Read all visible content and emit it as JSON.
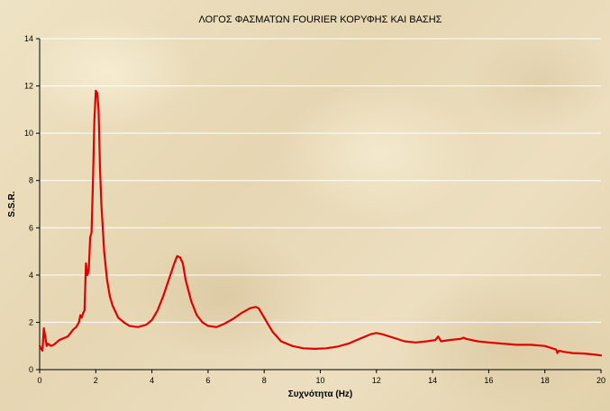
{
  "chart_data": {
    "type": "line",
    "title": "ΛΟΓΟΣ ΦΑΣΜΑΤΩΝ FOURIER ΚΟΡΥΦΗΣ ΚΑΙ ΒΑΣΗΣ",
    "xlabel": "Συχνότητα (Hz)",
    "ylabel": "S.S.R.",
    "xlim": [
      0,
      20
    ],
    "ylim": [
      0,
      14
    ],
    "x_ticks": [
      0,
      2,
      4,
      6,
      8,
      10,
      12,
      14,
      16,
      18,
      20
    ],
    "y_ticks": [
      0,
      2,
      4,
      6,
      8,
      10,
      12,
      14
    ],
    "grid": "horizontal",
    "legend": "none",
    "line_color": "#e00000",
    "series": [
      {
        "x": [
          0.0,
          0.1,
          0.15,
          0.2,
          0.25,
          0.3,
          0.4,
          0.5,
          0.6,
          0.7,
          0.8,
          0.9,
          1.0,
          1.1,
          1.2,
          1.3,
          1.4,
          1.45,
          1.5,
          1.55,
          1.6,
          1.65,
          1.7,
          1.75,
          1.8,
          1.85,
          1.9,
          1.95,
          2.0,
          2.05,
          2.1,
          2.15,
          2.2,
          2.3,
          2.4,
          2.5,
          2.6,
          2.8,
          3.0,
          3.2,
          3.5,
          3.8,
          4.0,
          4.2,
          4.4,
          4.6,
          4.8,
          4.9,
          5.0,
          5.1,
          5.2,
          5.4,
          5.6,
          5.8,
          6.0,
          6.3,
          6.6,
          6.9,
          7.2,
          7.5,
          7.7,
          7.8,
          7.9,
          8.1,
          8.3,
          8.6,
          9.0,
          9.4,
          9.8,
          10.2,
          10.6,
          11.0,
          11.4,
          11.8,
          12.0,
          12.2,
          12.6,
          13.0,
          13.4,
          13.8,
          14.1,
          14.2,
          14.25,
          14.3,
          14.6,
          15.0,
          15.1,
          15.2,
          15.6,
          16.0,
          16.5,
          17.0,
          17.5,
          18.0,
          18.4,
          18.45,
          18.5,
          18.7,
          19.0,
          19.4,
          19.8,
          20.0
        ],
        "y": [
          1.0,
          0.8,
          1.75,
          1.4,
          1.0,
          1.1,
          1.0,
          1.05,
          1.15,
          1.25,
          1.3,
          1.35,
          1.4,
          1.55,
          1.7,
          1.8,
          2.0,
          2.3,
          2.2,
          2.4,
          2.5,
          4.5,
          4.0,
          4.2,
          5.6,
          5.8,
          8.0,
          10.5,
          11.8,
          11.7,
          11.0,
          8.5,
          7.0,
          5.0,
          3.8,
          3.1,
          2.7,
          2.2,
          2.0,
          1.85,
          1.8,
          1.9,
          2.1,
          2.5,
          3.1,
          3.8,
          4.5,
          4.8,
          4.75,
          4.5,
          3.8,
          2.9,
          2.3,
          2.0,
          1.85,
          1.8,
          1.95,
          2.15,
          2.4,
          2.6,
          2.65,
          2.6,
          2.4,
          2.0,
          1.6,
          1.2,
          1.0,
          0.9,
          0.88,
          0.9,
          0.97,
          1.1,
          1.3,
          1.5,
          1.55,
          1.5,
          1.35,
          1.2,
          1.15,
          1.2,
          1.25,
          1.4,
          1.3,
          1.2,
          1.25,
          1.3,
          1.35,
          1.3,
          1.2,
          1.15,
          1.1,
          1.05,
          1.05,
          1.0,
          0.85,
          0.7,
          0.8,
          0.75,
          0.7,
          0.68,
          0.63,
          0.6
        ]
      }
    ]
  }
}
